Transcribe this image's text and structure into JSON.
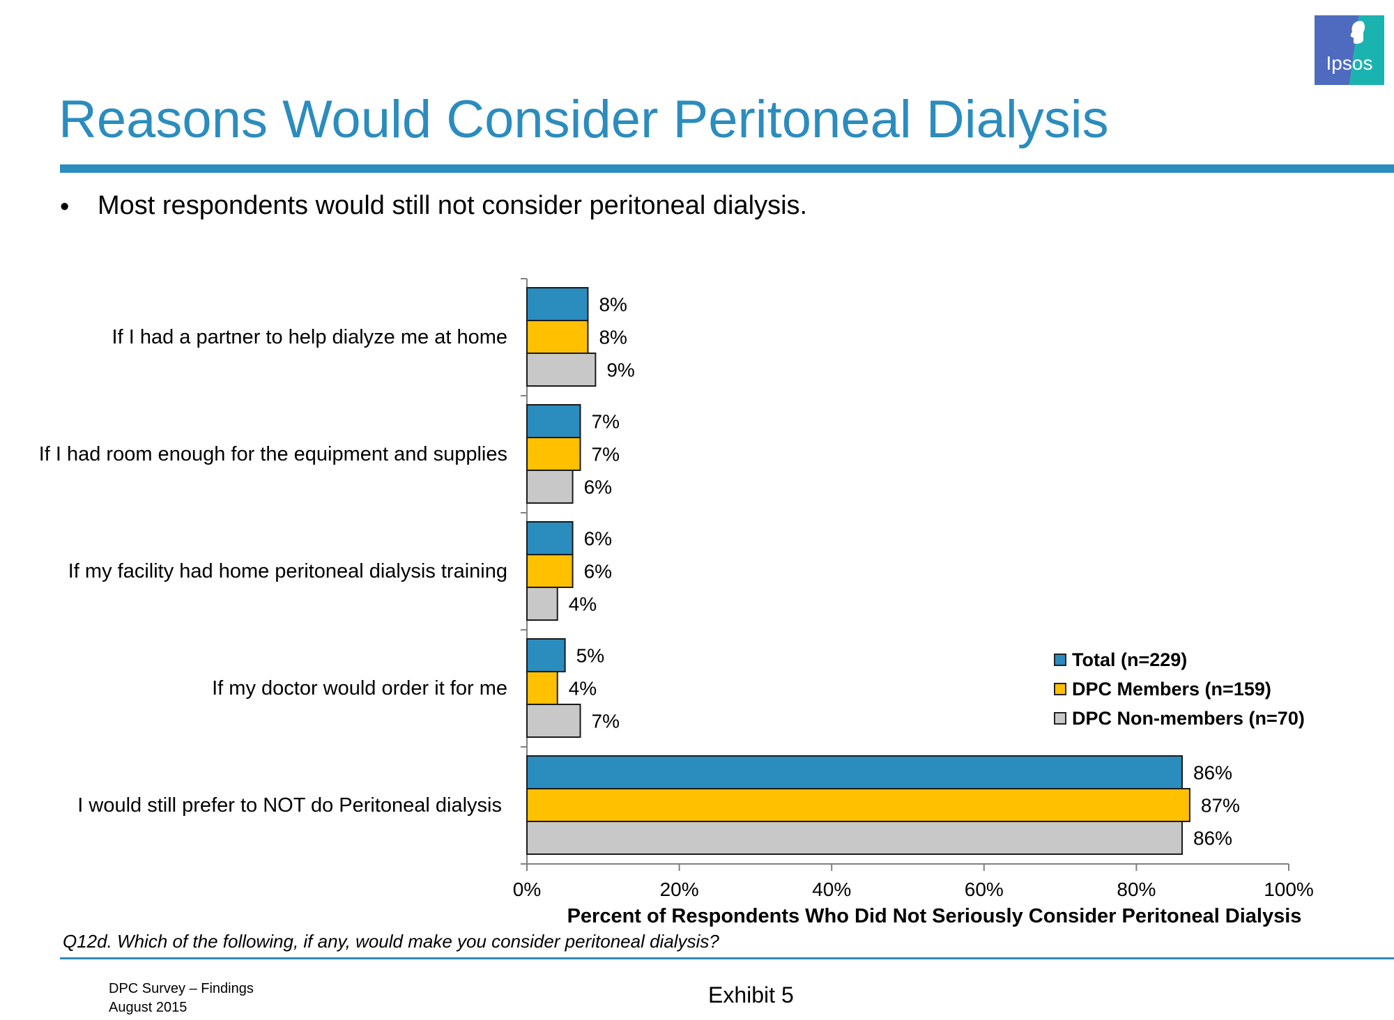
{
  "header": {
    "title": "Reasons Would Consider Peritoneal Dialysis",
    "bullet_symbol": "•",
    "bullet": "Most respondents would still not consider peritoneal dialysis.",
    "logo_text": "Ipsos",
    "accent_color": "#2b8cbe"
  },
  "chart_data": {
    "type": "bar",
    "orientation": "horizontal",
    "categories": [
      "If I had a partner to help dialyze me at home",
      "If I had room enough for the equipment and supplies",
      "If my facility had home peritoneal dialysis training",
      "If my doctor would order it for me",
      "I would still prefer to NOT do Peritoneal dialysis"
    ],
    "series": [
      {
        "name": "Total (n=229)",
        "color": "#2b8cbe",
        "values": [
          8,
          7,
          6,
          5,
          86
        ],
        "labels": [
          "8%",
          "7%",
          "6%",
          "5%",
          "86%"
        ]
      },
      {
        "name": "DPC Members (n=159)",
        "color": "#ffc000",
        "values": [
          8,
          7,
          6,
          4,
          87
        ],
        "labels": [
          "8%",
          "7%",
          "6%",
          "4%",
          "87%"
        ]
      },
      {
        "name": "DPC Non-members (n=70)",
        "color": "#c8c8c8",
        "values": [
          9,
          6,
          4,
          7,
          86
        ],
        "labels": [
          "9%",
          "6%",
          "4%",
          "7%",
          "86%"
        ]
      }
    ],
    "xlabel": "Percent of Respondents Who Did Not Seriously Consider Peritoneal Dialysis",
    "xlim": [
      0,
      100
    ],
    "xticks": [
      0,
      20,
      40,
      60,
      80,
      100
    ],
    "xtick_labels": [
      "0%",
      "20%",
      "40%",
      "60%",
      "80%",
      "100%"
    ],
    "grid": false,
    "legend_position": "right"
  },
  "footnote": "Q12d. Which of the following, if any, would make you consider peritoneal dialysis?",
  "footer": {
    "line1": "DPC Survey – Findings",
    "line2": "August 2015",
    "exhibit": "Exhibit 5"
  }
}
